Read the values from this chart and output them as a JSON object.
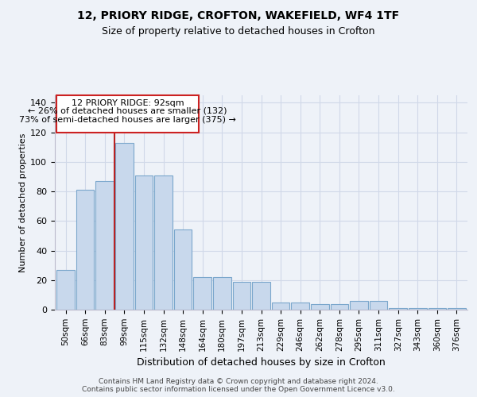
{
  "title1": "12, PRIORY RIDGE, CROFTON, WAKEFIELD, WF4 1TF",
  "title2": "Size of property relative to detached houses in Crofton",
  "xlabel": "Distribution of detached houses by size in Crofton",
  "ylabel": "Number of detached properties",
  "bar_labels": [
    "50sqm",
    "66sqm",
    "83sqm",
    "99sqm",
    "115sqm",
    "132sqm",
    "148sqm",
    "164sqm",
    "180sqm",
    "197sqm",
    "213sqm",
    "229sqm",
    "246sqm",
    "262sqm",
    "278sqm",
    "295sqm",
    "311sqm",
    "327sqm",
    "343sqm",
    "360sqm",
    "376sqm"
  ],
  "bar_values": [
    27,
    81,
    87,
    113,
    91,
    91,
    54,
    22,
    22,
    19,
    19,
    5,
    5,
    4,
    4,
    6,
    6,
    1,
    1,
    1,
    1
  ],
  "bar_color": "#c8d8ec",
  "bar_edge_color": "#7ba7cc",
  "property_label": "12 PRIORY RIDGE: 92sqm",
  "annotation_line1": "← 26% of detached houses are smaller (132)",
  "annotation_line2": "73% of semi-detached houses are larger (375) →",
  "vline_color": "#bb2222",
  "box_color": "#cc2222",
  "ylim": [
    0,
    145
  ],
  "yticks": [
    0,
    20,
    40,
    60,
    80,
    100,
    120,
    140
  ],
  "footer1": "Contains HM Land Registry data © Crown copyright and database right 2024.",
  "footer2": "Contains public sector information licensed under the Open Government Licence v3.0.",
  "bg_color": "#eef2f8",
  "grid_color": "#d0d8e8"
}
